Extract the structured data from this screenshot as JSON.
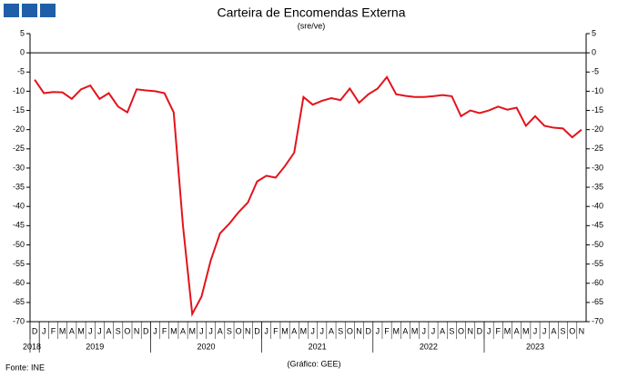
{
  "chart_data": {
    "type": "line",
    "title": "Carteira de Encomendas  Externa",
    "subtitle": "(sre/ve)",
    "source": "Fonte: INE",
    "credit": "(Gráfico: GEE)",
    "categories": [
      "D",
      "J",
      "F",
      "M",
      "A",
      "M",
      "J",
      "J",
      "A",
      "S",
      "O",
      "N",
      "D",
      "J",
      "F",
      "M",
      "A",
      "M",
      "J",
      "J",
      "A",
      "S",
      "O",
      "N",
      "D",
      "J",
      "F",
      "M",
      "A",
      "M",
      "J",
      "J",
      "A",
      "S",
      "O",
      "N",
      "D",
      "J",
      "F",
      "M",
      "A",
      "M",
      "J",
      "J",
      "A",
      "S",
      "O",
      "N",
      "D",
      "J",
      "F",
      "M",
      "A",
      "M",
      "J",
      "J",
      "A",
      "S",
      "O",
      "N"
    ],
    "years": [
      "2018",
      "2019",
      "2020",
      "2021",
      "2022",
      "2023"
    ],
    "series": [
      {
        "name": "Carteira de Encomendas Externa",
        "color": "#e3131b",
        "values": [
          -7,
          -10.5,
          -10.2,
          -10.3,
          -12,
          -9.5,
          -8.5,
          -12,
          -10.5,
          -14,
          -15.5,
          -9.5,
          -9.8,
          -10,
          -10.5,
          -15.5,
          -45,
          -68,
          -63.5,
          -54,
          -47,
          -44.5,
          -41.5,
          -39,
          -33.5,
          -32,
          -32.5,
          -29.5,
          -26,
          -11.5,
          -13.5,
          -12.5,
          -11.8,
          -12.3,
          -9.3,
          -13,
          -10.8,
          -9.3,
          -6.3,
          -10.8,
          -11.2,
          -11.5,
          -11.5,
          -11.3,
          -11,
          -11.3,
          -16.5,
          -15,
          -15.7,
          -15,
          -14,
          -14.8,
          -14.3,
          -19,
          -16.5,
          -19,
          -19.5,
          -19.7,
          -22,
          -20
        ]
      }
    ],
    "ylim": [
      -70,
      5
    ],
    "yticks": [
      5,
      0,
      -5,
      -10,
      -15,
      -20,
      -25,
      -30,
      -35,
      -40,
      -45,
      -50,
      -55,
      -60,
      -65,
      -70
    ],
    "grid": false
  }
}
